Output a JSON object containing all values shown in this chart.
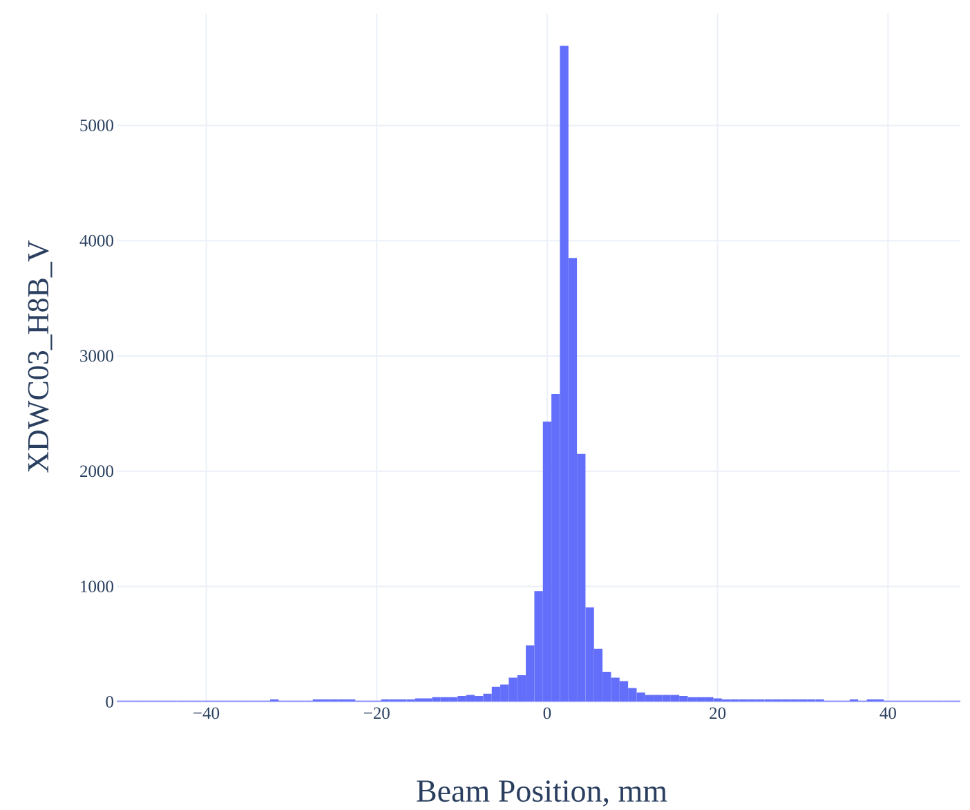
{
  "chart_data": {
    "type": "histogram",
    "xlabel": "Beam Position, mm",
    "ylabel": "XDWC03_H8B_V",
    "bins": [
      -50.5,
      -49.5,
      -48.5,
      -47.5,
      -46.5,
      -45.5,
      -44.5,
      -43.5,
      -42.5,
      -41.5,
      -40.5,
      -39.5,
      -38.5,
      -37.5,
      -36.5,
      -35.5,
      -34.5,
      -33.5,
      -32.5,
      -31.5,
      -30.5,
      -29.5,
      -28.5,
      -27.5,
      -26.5,
      -25.5,
      -24.5,
      -23.5,
      -22.5,
      -21.5,
      -20.5,
      -19.5,
      -18.5,
      -17.5,
      -16.5,
      -15.5,
      -14.5,
      -13.5,
      -12.5,
      -11.5,
      -10.5,
      -9.5,
      -8.5,
      -7.5,
      -6.5,
      -5.5,
      -4.5,
      -3.5,
      -2.5,
      -1.5,
      -0.5,
      0.5,
      1.5,
      2.5,
      3.5,
      4.5,
      5.5,
      6.5,
      7.5,
      8.5,
      9.5,
      10.5,
      11.5,
      12.5,
      13.5,
      14.5,
      15.5,
      16.5,
      17.5,
      18.5,
      19.5,
      20.5,
      21.5,
      22.5,
      23.5,
      24.5,
      25.5,
      26.5,
      27.5,
      28.5,
      29.5,
      30.5,
      31.5,
      32.5,
      33.5,
      34.5,
      35.5,
      36.5,
      37.5,
      38.5,
      39.5,
      40.5,
      41.5,
      42.5,
      43.5,
      44.5,
      45.5,
      46.5,
      47.5,
      48.5
    ],
    "values": [
      10,
      10,
      10,
      10,
      10,
      10,
      10,
      10,
      10,
      10,
      10,
      10,
      10,
      10,
      10,
      10,
      10,
      10,
      20,
      10,
      10,
      10,
      10,
      20,
      20,
      20,
      20,
      20,
      10,
      10,
      10,
      20,
      20,
      20,
      20,
      30,
      30,
      40,
      40,
      40,
      50,
      60,
      50,
      70,
      130,
      150,
      210,
      230,
      490,
      960,
      2430,
      2670,
      5690,
      3850,
      2150,
      820,
      460,
      260,
      210,
      180,
      120,
      80,
      60,
      60,
      60,
      60,
      50,
      40,
      40,
      40,
      30,
      20,
      20,
      20,
      20,
      20,
      20,
      20,
      20,
      20,
      20,
      20,
      20,
      10,
      10,
      10,
      20,
      10,
      20,
      20,
      10,
      10,
      10,
      10,
      10,
      10,
      10,
      10,
      10
    ],
    "color": "#636efa",
    "xlim": [
      -50.5,
      48.5
    ],
    "ylim": [
      0,
      5970
    ],
    "xticks": [
      {
        "value": -40,
        "label": "−40"
      },
      {
        "value": -20,
        "label": "−20"
      },
      0,
      20,
      40
    ],
    "yticks": [
      0,
      1000,
      2000,
      3000,
      4000,
      5000
    ],
    "grid": true
  }
}
